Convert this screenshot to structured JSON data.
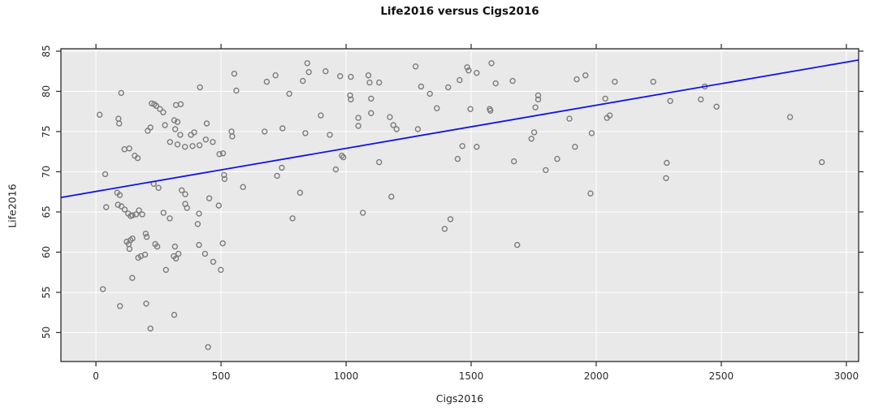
{
  "page": {
    "title": "Life2016 versus Cigs2016"
  },
  "chart_data": {
    "type": "scatter",
    "title": "Life2016 versus Cigs2016",
    "xlabel": "Cigs2016",
    "ylabel": "Life2016",
    "xlim": [
      -140,
      3049
    ],
    "ylim": [
      46.4,
      85.3
    ],
    "x_ticks": [
      0,
      500,
      1000,
      1500,
      2000,
      2500,
      3000
    ],
    "y_ticks": [
      50,
      55,
      60,
      65,
      70,
      75,
      80,
      85
    ],
    "grid": true,
    "legend_position": "none",
    "plot_background": "#e9e9e9",
    "gridline_color": "#ffffff",
    "border_color": "#2a2a2a",
    "point_color": "#7d7d7d",
    "line_color": "#1212ee",
    "regression_line": {
      "x1": -140,
      "y1": 66.8,
      "x2": 3049,
      "y2": 83.9
    },
    "points": [
      [
        553,
        82.2
      ],
      [
        416,
        80.5
      ],
      [
        101,
        79.8
      ],
      [
        561,
        80.1
      ],
      [
        15,
        77.1
      ],
      [
        223,
        78.5
      ],
      [
        233,
        78.4
      ],
      [
        241,
        78.2
      ],
      [
        256,
        77.8
      ],
      [
        269,
        77.4
      ],
      [
        320,
        78.3
      ],
      [
        339,
        78.4
      ],
      [
        90,
        76.6
      ],
      [
        93,
        76.0
      ],
      [
        276,
        75.8
      ],
      [
        218,
        75.5
      ],
      [
        207,
        75.1
      ],
      [
        313,
        76.4
      ],
      [
        326,
        76.2
      ],
      [
        317,
        75.3
      ],
      [
        337,
        74.6
      ],
      [
        443,
        76.0
      ],
      [
        380,
        74.6
      ],
      [
        393,
        74.9
      ],
      [
        439,
        74.0
      ],
      [
        467,
        73.7
      ],
      [
        296,
        73.7
      ],
      [
        326,
        73.4
      ],
      [
        356,
        73.1
      ],
      [
        386,
        73.2
      ],
      [
        414,
        73.3
      ],
      [
        542,
        75.0
      ],
      [
        545,
        74.4
      ],
      [
        114,
        72.8
      ],
      [
        133,
        72.9
      ],
      [
        155,
        72.0
      ],
      [
        167,
        71.7
      ],
      [
        494,
        72.2
      ],
      [
        508,
        72.3
      ],
      [
        37,
        69.7
      ],
      [
        512,
        69.6
      ],
      [
        514,
        69.1
      ],
      [
        231,
        68.5
      ],
      [
        250,
        68.0
      ],
      [
        343,
        67.7
      ],
      [
        357,
        67.2
      ],
      [
        588,
        68.1
      ],
      [
        453,
        66.7
      ],
      [
        85,
        67.4
      ],
      [
        95,
        67.1
      ],
      [
        41,
        65.6
      ],
      [
        88,
        65.9
      ],
      [
        102,
        65.7
      ],
      [
        115,
        65.3
      ],
      [
        129,
        64.8
      ],
      [
        139,
        64.5
      ],
      [
        146,
        64.6
      ],
      [
        160,
        64.7
      ],
      [
        172,
        65.2
      ],
      [
        185,
        64.7
      ],
      [
        270,
        64.9
      ],
      [
        295,
        64.2
      ],
      [
        357,
        66.0
      ],
      [
        364,
        65.5
      ],
      [
        412,
        64.8
      ],
      [
        407,
        63.5
      ],
      [
        491,
        65.8
      ],
      [
        199,
        62.3
      ],
      [
        203,
        61.9
      ],
      [
        123,
        61.3
      ],
      [
        131,
        61.0
      ],
      [
        138,
        61.5
      ],
      [
        146,
        61.7
      ],
      [
        134,
        60.4
      ],
      [
        169,
        59.3
      ],
      [
        180,
        59.5
      ],
      [
        196,
        59.7
      ],
      [
        237,
        61.0
      ],
      [
        245,
        60.7
      ],
      [
        316,
        60.7
      ],
      [
        311,
        59.5
      ],
      [
        320,
        59.2
      ],
      [
        330,
        59.8
      ],
      [
        412,
        60.9
      ],
      [
        436,
        59.8
      ],
      [
        469,
        58.8
      ],
      [
        507,
        61.1
      ],
      [
        499,
        57.8
      ],
      [
        280,
        57.8
      ],
      [
        145,
        56.8
      ],
      [
        28,
        55.4
      ],
      [
        96,
        53.3
      ],
      [
        201,
        53.6
      ],
      [
        313,
        52.2
      ],
      [
        218,
        50.5
      ],
      [
        448,
        48.2
      ],
      [
        718,
        82.0
      ],
      [
        683,
        81.2
      ],
      [
        845,
        83.5
      ],
      [
        851,
        82.4
      ],
      [
        918,
        82.5
      ],
      [
        827,
        81.3
      ],
      [
        976,
        81.9
      ],
      [
        1019,
        81.8
      ],
      [
        1089,
        82.0
      ],
      [
        1094,
        81.1
      ],
      [
        1132,
        81.1
      ],
      [
        773,
        79.7
      ],
      [
        1016,
        79.5
      ],
      [
        1019,
        79.0
      ],
      [
        1100,
        79.1
      ],
      [
        899,
        77.0
      ],
      [
        1100,
        77.3
      ],
      [
        1049,
        76.7
      ],
      [
        1049,
        75.7
      ],
      [
        1175,
        76.8
      ],
      [
        1189,
        75.8
      ],
      [
        1202,
        75.3
      ],
      [
        746,
        75.4
      ],
      [
        674,
        75.0
      ],
      [
        837,
        74.8
      ],
      [
        935,
        74.6
      ],
      [
        983,
        72.0
      ],
      [
        989,
        71.8
      ],
      [
        1132,
        71.2
      ],
      [
        959,
        70.3
      ],
      [
        743,
        70.5
      ],
      [
        724,
        69.5
      ],
      [
        816,
        67.4
      ],
      [
        1181,
        66.9
      ],
      [
        786,
        64.2
      ],
      [
        1067,
        64.9
      ],
      [
        1278,
        83.1
      ],
      [
        1454,
        81.4
      ],
      [
        1408,
        80.5
      ],
      [
        1300,
        80.6
      ],
      [
        1335,
        79.7
      ],
      [
        1363,
        77.9
      ],
      [
        1287,
        75.3
      ],
      [
        1484,
        83.0
      ],
      [
        1490,
        82.6
      ],
      [
        1522,
        82.3
      ],
      [
        1581,
        83.5
      ],
      [
        1598,
        81.0
      ],
      [
        1666,
        81.3
      ],
      [
        1768,
        79.5
      ],
      [
        1768,
        79.0
      ],
      [
        1757,
        78.0
      ],
      [
        1574,
        77.8
      ],
      [
        1577,
        77.6
      ],
      [
        1497,
        77.8
      ],
      [
        1922,
        81.5
      ],
      [
        1957,
        82.0
      ],
      [
        2074,
        81.2
      ],
      [
        2228,
        81.2
      ],
      [
        2036,
        79.1
      ],
      [
        2043,
        76.7
      ],
      [
        2054,
        77.0
      ],
      [
        1893,
        76.6
      ],
      [
        1982,
        74.8
      ],
      [
        1752,
        74.9
      ],
      [
        1741,
        74.1
      ],
      [
        1465,
        73.2
      ],
      [
        1522,
        73.1
      ],
      [
        1915,
        73.1
      ],
      [
        1446,
        71.6
      ],
      [
        1671,
        71.3
      ],
      [
        1844,
        71.6
      ],
      [
        1798,
        70.2
      ],
      [
        1977,
        67.3
      ],
      [
        2282,
        71.1
      ],
      [
        2279,
        69.2
      ],
      [
        1394,
        62.9
      ],
      [
        1417,
        64.1
      ],
      [
        1684,
        60.9
      ],
      [
        2296,
        78.8
      ],
      [
        2434,
        80.6
      ],
      [
        2418,
        79.0
      ],
      [
        2481,
        78.1
      ],
      [
        2775,
        76.8
      ],
      [
        2902,
        71.2
      ]
    ]
  }
}
